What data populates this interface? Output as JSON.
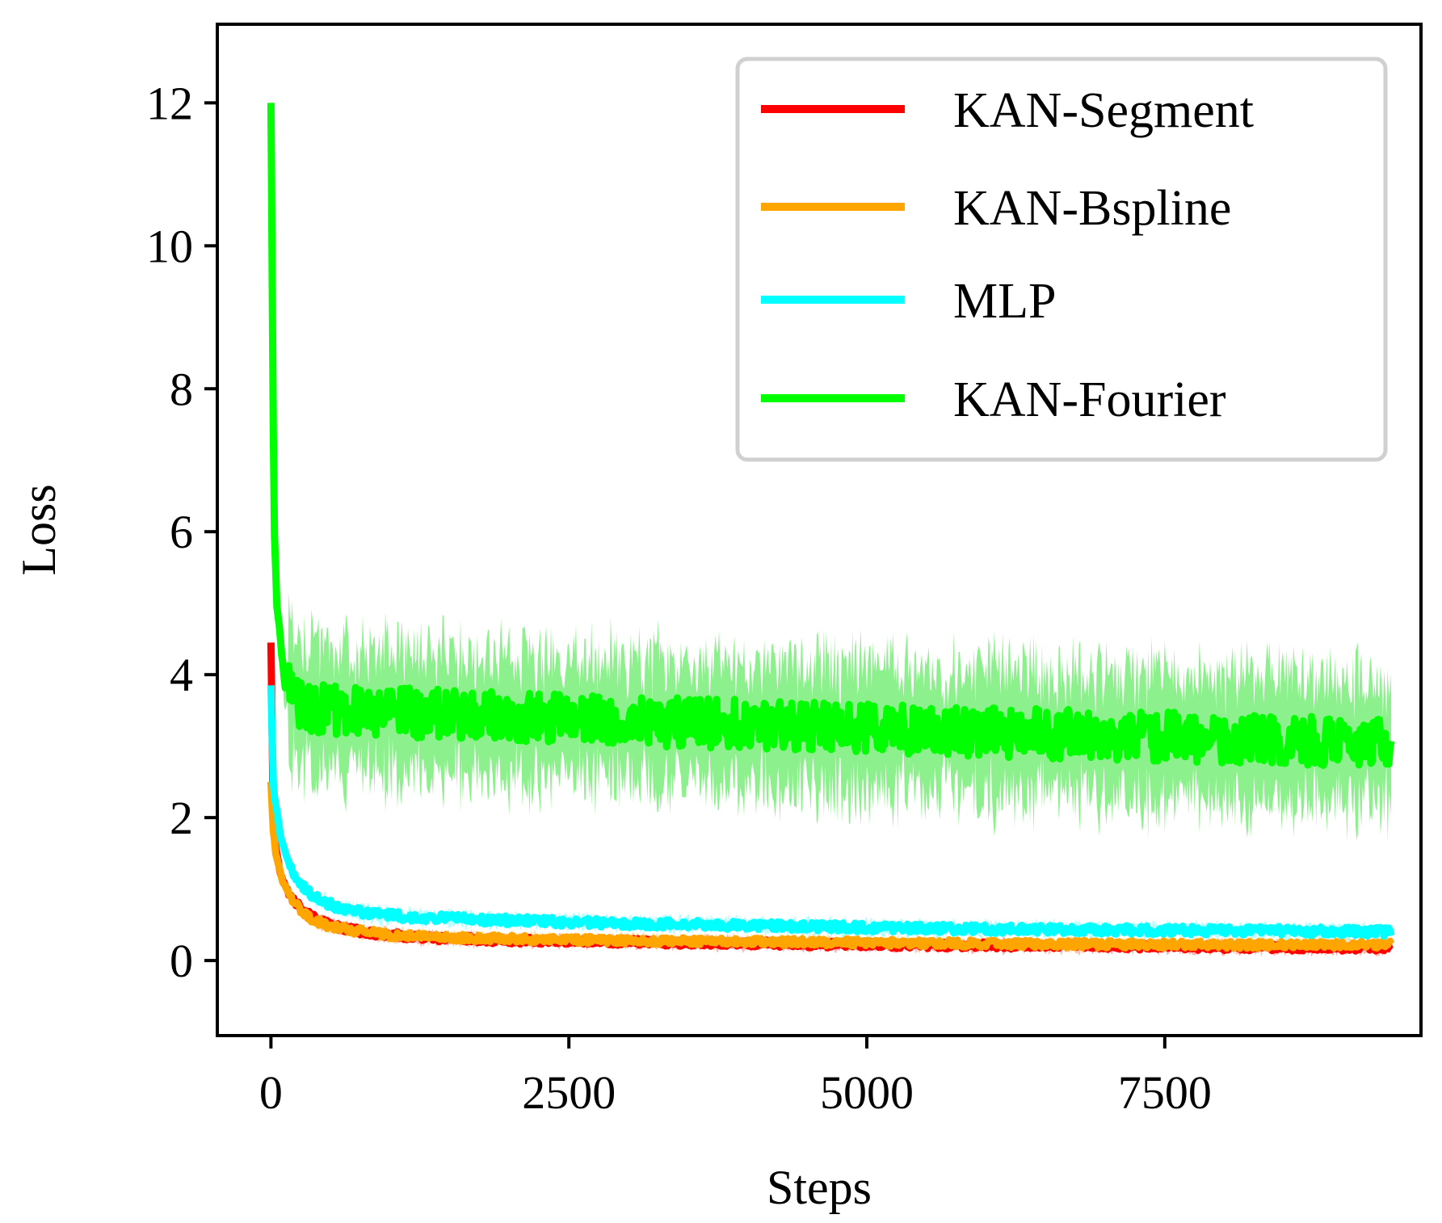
{
  "chart_data": {
    "type": "line",
    "title": "",
    "xlabel": "Steps",
    "ylabel": "Loss",
    "xlim": [
      -450,
      9650
    ],
    "ylim": [
      -1.05,
      13.1
    ],
    "xticks": [
      0,
      2500,
      5000,
      7500
    ],
    "xtick_labels": [
      "0",
      "2500",
      "5000",
      "7500"
    ],
    "yticks": [
      0,
      2,
      4,
      6,
      8,
      10,
      12
    ],
    "ytick_labels": [
      "0",
      "2",
      "4",
      "6",
      "8",
      "10",
      "12"
    ],
    "grid": false,
    "legend_position": "top-right",
    "series": [
      {
        "name": "KAN-Segment",
        "color": "#ff0000",
        "band_color": "#ff8080",
        "points": [
          [
            0,
            4.45
          ],
          [
            0,
            3.85
          ],
          [
            5,
            2.3
          ],
          [
            30,
            1.7
          ],
          [
            80,
            1.2
          ],
          [
            150,
            0.95
          ],
          [
            250,
            0.72
          ],
          [
            400,
            0.55
          ],
          [
            600,
            0.45
          ],
          [
            900,
            0.37
          ],
          [
            1300,
            0.32
          ],
          [
            2000,
            0.28
          ],
          [
            3000,
            0.26
          ],
          [
            4000,
            0.24
          ],
          [
            5000,
            0.22
          ],
          [
            6000,
            0.21
          ],
          [
            7000,
            0.2
          ],
          [
            8000,
            0.19
          ],
          [
            9400,
            0.18
          ]
        ],
        "noise": 0.05
      },
      {
        "name": "KAN-Bspline",
        "color": "#ffa500",
        "band_color": "#ffd080",
        "points": [
          [
            0,
            2.5
          ],
          [
            10,
            2.0
          ],
          [
            40,
            1.5
          ],
          [
            100,
            1.1
          ],
          [
            180,
            0.85
          ],
          [
            300,
            0.62
          ],
          [
            450,
            0.5
          ],
          [
            700,
            0.42
          ],
          [
            1000,
            0.36
          ],
          [
            1500,
            0.32
          ],
          [
            2500,
            0.29
          ],
          [
            3500,
            0.27
          ],
          [
            5000,
            0.25
          ],
          [
            6500,
            0.23
          ],
          [
            8000,
            0.22
          ],
          [
            9400,
            0.22
          ]
        ],
        "noise": 0.05
      },
      {
        "name": "MLP",
        "color": "#00ffff",
        "band_color": "#80ffff",
        "points": [
          [
            0,
            3.85
          ],
          [
            5,
            2.8
          ],
          [
            30,
            2.3
          ],
          [
            80,
            1.75
          ],
          [
            150,
            1.35
          ],
          [
            250,
            1.05
          ],
          [
            400,
            0.85
          ],
          [
            600,
            0.72
          ],
          [
            900,
            0.64
          ],
          [
            1300,
            0.6
          ],
          [
            2000,
            0.56
          ],
          [
            3000,
            0.52
          ],
          [
            4000,
            0.49
          ],
          [
            5000,
            0.46
          ],
          [
            6000,
            0.44
          ],
          [
            7000,
            0.43
          ],
          [
            8000,
            0.42
          ],
          [
            9400,
            0.4
          ]
        ],
        "noise": 0.06
      },
      {
        "name": "KAN-Fourier",
        "color": "#00ff00",
        "band_color": "#80f080",
        "points": [
          [
            0,
            12.0
          ],
          [
            5,
            11.0
          ],
          [
            15,
            8.0
          ],
          [
            30,
            6.0
          ],
          [
            50,
            5.0
          ],
          [
            80,
            4.4
          ],
          [
            120,
            3.9
          ],
          [
            200,
            3.6
          ],
          [
            500,
            3.5
          ],
          [
            1500,
            3.45
          ],
          [
            3000,
            3.35
          ],
          [
            5000,
            3.25
          ],
          [
            7000,
            3.15
          ],
          [
            9400,
            3.05
          ]
        ],
        "noise": 0.35,
        "band": 0.9
      }
    ]
  }
}
